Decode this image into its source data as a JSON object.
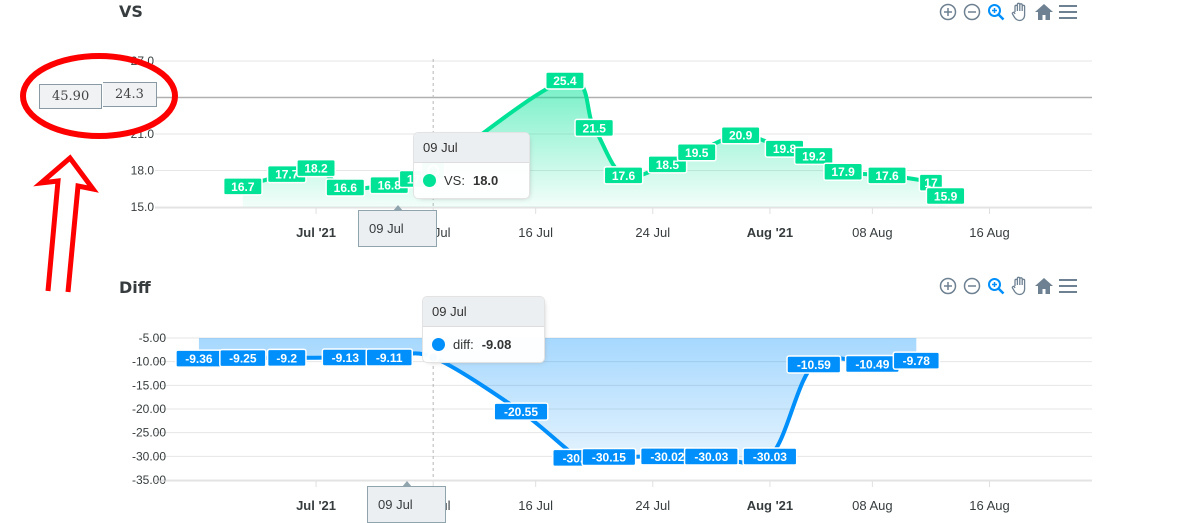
{
  "charts": [
    {
      "title": "VS",
      "toolbar": [
        "zoom-in-icon",
        "zoom-out-icon",
        "zoom-select-icon",
        "pan-hand-icon",
        "home-icon",
        "menu-icon"
      ]
    },
    {
      "title": "Diff",
      "toolbar": [
        "zoom-in-icon",
        "zoom-out-icon",
        "zoom-select-icon",
        "pan-hand-icon",
        "home-icon",
        "menu-icon"
      ]
    }
  ],
  "colors": {
    "vs": "#00e396",
    "diff": "#008ffb",
    "annotation": "#ff0000"
  },
  "annotation": {
    "left_value": "45.90",
    "right_value": "24.3"
  },
  "tooltips": {
    "vs": {
      "title": "09 Jul",
      "series": "VS:",
      "value": "18.0"
    },
    "diff": {
      "title": "09 Jul",
      "series": "diff:",
      "value": "-9.08"
    }
  },
  "crosshair_label": "09 Jul",
  "chart_data": [
    {
      "type": "area",
      "title": "VS",
      "x_ticks": [
        "Jul '21",
        "09 Jul",
        "16 Jul",
        "24 Jul",
        "Aug '21",
        "08 Aug",
        "16 Aug"
      ],
      "y_ticks": [
        "15.0",
        "18.0",
        "21.0",
        "24.0",
        "27.0"
      ],
      "ylim": [
        15,
        27
      ],
      "series": [
        {
          "name": "VS",
          "points": [
            {
              "x": "2021-06-26",
              "y": 16.7,
              "label": "16.7"
            },
            {
              "x": "2021-06-29",
              "y": 17.7,
              "label": "17.7"
            },
            {
              "x": "2021-07-01",
              "y": 18.2,
              "label": "18.2"
            },
            {
              "x": "2021-07-03",
              "y": 16.6,
              "label": "16.6"
            },
            {
              "x": "2021-07-06",
              "y": 16.8,
              "label": "16.8"
            },
            {
              "x": "2021-07-08",
              "y": 17.3,
              "label": "17.3"
            },
            {
              "x": "2021-07-09",
              "y": 18.0,
              "label": "18"
            },
            {
              "x": "2021-07-18",
              "y": 25.4,
              "label": "25.4"
            },
            {
              "x": "2021-07-20",
              "y": 21.5,
              "label": "21.5"
            },
            {
              "x": "2021-07-22",
              "y": 17.6,
              "label": "17.6"
            },
            {
              "x": "2021-07-25",
              "y": 18.5,
              "label": "18.5"
            },
            {
              "x": "2021-07-27",
              "y": 19.5,
              "label": "19.5"
            },
            {
              "x": "2021-07-30",
              "y": 20.9,
              "label": "20.9"
            },
            {
              "x": "2021-08-02",
              "y": 19.8,
              "label": "19.8"
            },
            {
              "x": "2021-08-04",
              "y": 19.2,
              "label": "19.2"
            },
            {
              "x": "2021-08-06",
              "y": 17.9,
              "label": "17.9"
            },
            {
              "x": "2021-08-09",
              "y": 17.6,
              "label": "17.6"
            },
            {
              "x": "2021-08-12",
              "y": 17.0,
              "label": "17"
            },
            {
              "x": "2021-08-13",
              "y": 15.9,
              "label": "15.9"
            }
          ]
        }
      ]
    },
    {
      "type": "area",
      "title": "Diff",
      "x_ticks": [
        "Jul '21",
        "09 Jul",
        "16 Jul",
        "24 Jul",
        "Aug '21",
        "08 Aug",
        "16 Aug"
      ],
      "y_ticks": [
        "-5.00",
        "-10.00",
        "-15.00",
        "-20.00",
        "-25.00",
        "-30.00",
        "-35.00"
      ],
      "ylim": [
        -35,
        -5
      ],
      "series": [
        {
          "name": "diff",
          "points": [
            {
              "x": "2021-06-23",
              "y": -9.36,
              "label": "-9.36"
            },
            {
              "x": "2021-06-26",
              "y": -9.25,
              "label": "-9.25"
            },
            {
              "x": "2021-06-29",
              "y": -9.2,
              "label": "-9.2"
            },
            {
              "x": "2021-07-03",
              "y": -9.13,
              "label": "-9.13"
            },
            {
              "x": "2021-07-06",
              "y": -9.11,
              "label": "-9.11"
            },
            {
              "x": "2021-07-09",
              "y": -9.08,
              "label": ""
            },
            {
              "x": "2021-07-15",
              "y": -20.55,
              "label": "-20.55"
            },
            {
              "x": "2021-07-19",
              "y": -30.32,
              "label": "-30.32"
            },
            {
              "x": "2021-07-21",
              "y": -30.15,
              "label": "-30.15"
            },
            {
              "x": "2021-07-25",
              "y": -30.02,
              "label": "-30.02"
            },
            {
              "x": "2021-07-28",
              "y": -30.03,
              "label": "-30.03"
            },
            {
              "x": "2021-08-01",
              "y": -30.03,
              "label": "-30.03"
            },
            {
              "x": "2021-08-04",
              "y": -10.59,
              "label": "-10.59"
            },
            {
              "x": "2021-08-08",
              "y": -10.49,
              "label": "-10.49"
            },
            {
              "x": "2021-08-11",
              "y": -9.78,
              "label": "-9.78"
            }
          ]
        }
      ]
    }
  ]
}
